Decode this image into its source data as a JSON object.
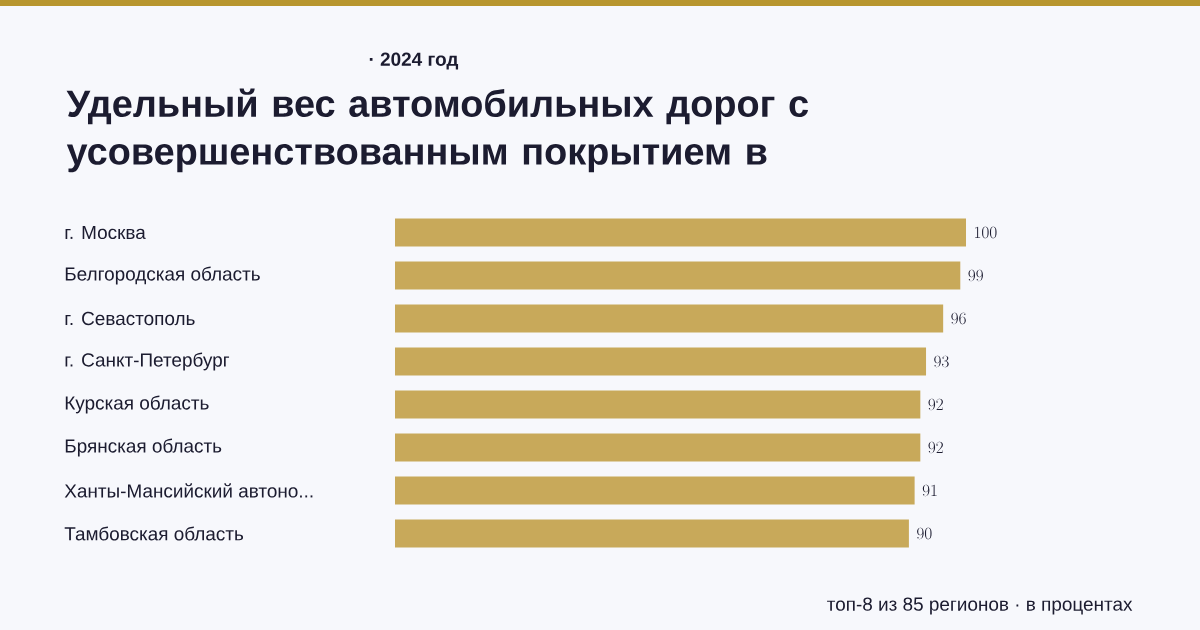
{
  "chart_data": {
    "type": "bar",
    "orientation": "horizontal",
    "subtitle": "· 2024 год",
    "title": "Удельный вес автомобильных дорог с усовершенствованным покрытием в",
    "categories": [
      "г. Москва",
      "Белгородская область",
      "г. Севастополь",
      "г. Санкт-Петербург",
      "Курская область",
      "Брянская область",
      "Ханты-Мансийский автоно...",
      "Тамбовская область"
    ],
    "values": [
      100,
      99,
      96,
      93,
      92,
      92,
      91,
      90
    ],
    "color": "#c8a95a",
    "xlim": [
      0,
      100
    ],
    "data_labels": true,
    "annotations": [
      "топ-8 из 85 регионов · в процентах"
    ]
  }
}
